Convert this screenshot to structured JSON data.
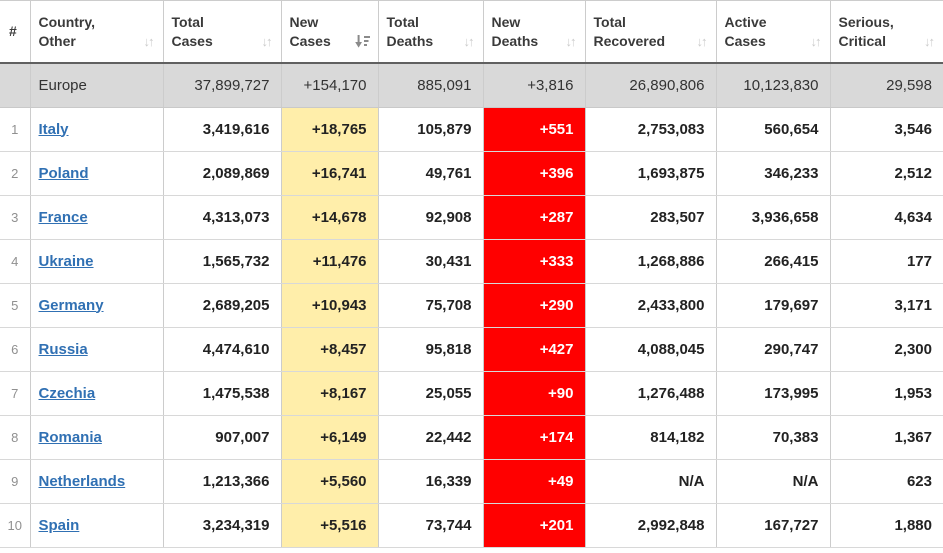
{
  "table": {
    "columns": [
      {
        "line1": "",
        "line2": "#",
        "sort": "none"
      },
      {
        "line1": "Country,",
        "line2": "Other",
        "sort": "inactive"
      },
      {
        "line1": "Total",
        "line2": "Cases",
        "sort": "inactive"
      },
      {
        "line1": "New",
        "line2": "Cases",
        "sort": "active-desc"
      },
      {
        "line1": "Total",
        "line2": "Deaths",
        "sort": "inactive"
      },
      {
        "line1": "New",
        "line2": "Deaths",
        "sort": "inactive"
      },
      {
        "line1": "Total",
        "line2": "Recovered",
        "sort": "inactive"
      },
      {
        "line1": "Active",
        "line2": "Cases",
        "sort": "inactive"
      },
      {
        "line1": "Serious,",
        "line2": "Critical",
        "sort": "inactive"
      }
    ],
    "summary_row": {
      "rank": "",
      "country": "Europe",
      "total_cases": "37,899,727",
      "new_cases": "+154,170",
      "total_deaths": "885,091",
      "new_deaths": "+3,816",
      "total_recovered": "26,890,806",
      "active_cases": "10,123,830",
      "serious_critical": "29,598"
    },
    "rows": [
      {
        "rank": "1",
        "country": "Italy",
        "total_cases": "3,419,616",
        "new_cases": "+18,765",
        "total_deaths": "105,879",
        "new_deaths": "+551",
        "total_recovered": "2,753,083",
        "active_cases": "560,654",
        "serious_critical": "3,546"
      },
      {
        "rank": "2",
        "country": "Poland",
        "total_cases": "2,089,869",
        "new_cases": "+16,741",
        "total_deaths": "49,761",
        "new_deaths": "+396",
        "total_recovered": "1,693,875",
        "active_cases": "346,233",
        "serious_critical": "2,512"
      },
      {
        "rank": "3",
        "country": "France",
        "total_cases": "4,313,073",
        "new_cases": "+14,678",
        "total_deaths": "92,908",
        "new_deaths": "+287",
        "total_recovered": "283,507",
        "active_cases": "3,936,658",
        "serious_critical": "4,634"
      },
      {
        "rank": "4",
        "country": "Ukraine",
        "total_cases": "1,565,732",
        "new_cases": "+11,476",
        "total_deaths": "30,431",
        "new_deaths": "+333",
        "total_recovered": "1,268,886",
        "active_cases": "266,415",
        "serious_critical": "177"
      },
      {
        "rank": "5",
        "country": "Germany",
        "total_cases": "2,689,205",
        "new_cases": "+10,943",
        "total_deaths": "75,708",
        "new_deaths": "+290",
        "total_recovered": "2,433,800",
        "active_cases": "179,697",
        "serious_critical": "3,171"
      },
      {
        "rank": "6",
        "country": "Russia",
        "total_cases": "4,474,610",
        "new_cases": "+8,457",
        "total_deaths": "95,818",
        "new_deaths": "+427",
        "total_recovered": "4,088,045",
        "active_cases": "290,747",
        "serious_critical": "2,300"
      },
      {
        "rank": "7",
        "country": "Czechia",
        "total_cases": "1,475,538",
        "new_cases": "+8,167",
        "total_deaths": "25,055",
        "new_deaths": "+90",
        "total_recovered": "1,276,488",
        "active_cases": "173,995",
        "serious_critical": "1,953"
      },
      {
        "rank": "8",
        "country": "Romania",
        "total_cases": "907,007",
        "new_cases": "+6,149",
        "total_deaths": "22,442",
        "new_deaths": "+174",
        "total_recovered": "814,182",
        "active_cases": "70,383",
        "serious_critical": "1,367"
      },
      {
        "rank": "9",
        "country": "Netherlands",
        "total_cases": "1,213,366",
        "new_cases": "+5,560",
        "total_deaths": "16,339",
        "new_deaths": "+49",
        "total_recovered": "N/A",
        "active_cases": "N/A",
        "serious_critical": "623"
      },
      {
        "rank": "10",
        "country": "Spain",
        "total_cases": "3,234,319",
        "new_cases": "+5,516",
        "total_deaths": "73,744",
        "new_deaths": "+201",
        "total_recovered": "2,992,848",
        "active_cases": "167,727",
        "serious_critical": "1,880"
      }
    ]
  },
  "colors": {
    "new_cases_bg": "#FFEEAA",
    "new_deaths_bg": "#FF0000",
    "summary_bg": "#D9D9D9",
    "link_blue": "#3070B3",
    "sort_inactive": "#CBCBCB",
    "sort_active": "#8A8A8A"
  }
}
